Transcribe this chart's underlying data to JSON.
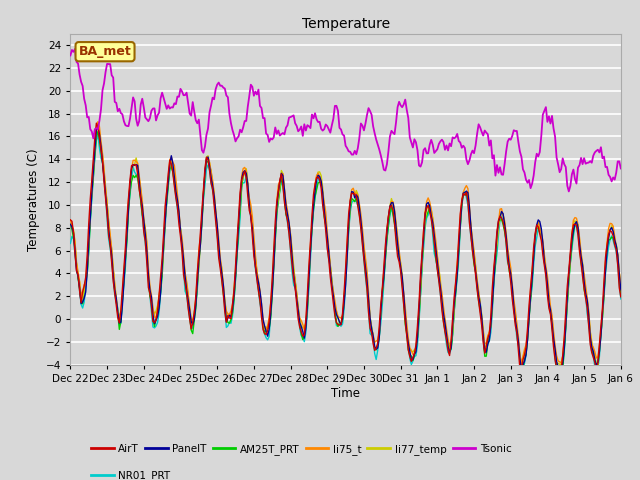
{
  "title": "Temperature",
  "xlabel": "Time",
  "ylabel": "Temperatures (C)",
  "ylim": [
    -4,
    25
  ],
  "yticks": [
    -4,
    -2,
    0,
    2,
    4,
    6,
    8,
    10,
    12,
    14,
    16,
    18,
    20,
    22,
    24
  ],
  "date_labels": [
    "Dec 22",
    "Dec 23",
    "Dec 24",
    "Dec 25",
    "Dec 26",
    "Dec 27",
    "Dec 28",
    "Dec 29",
    "Dec 30",
    "Dec 31",
    "Jan 1",
    "Jan 2",
    "Jan 3",
    "Jan 4",
    "Jan 5",
    "Jan 6"
  ],
  "colors": {
    "AirT": "#cc0000",
    "PanelT": "#000099",
    "AM25T_PRT": "#00cc00",
    "li75_t": "#ff8800",
    "li77_temp": "#cccc00",
    "Tsonic": "#cc00cc",
    "NR01_PRT": "#00cccc"
  },
  "legend_box": {
    "text": "BA_met",
    "facecolor": "#ffff99",
    "edgecolor": "#996600",
    "textcolor": "#993300"
  },
  "bg_color": "#d8d8d8",
  "plot_bg": "#d8d8d8",
  "grid_color": "#ffffff"
}
